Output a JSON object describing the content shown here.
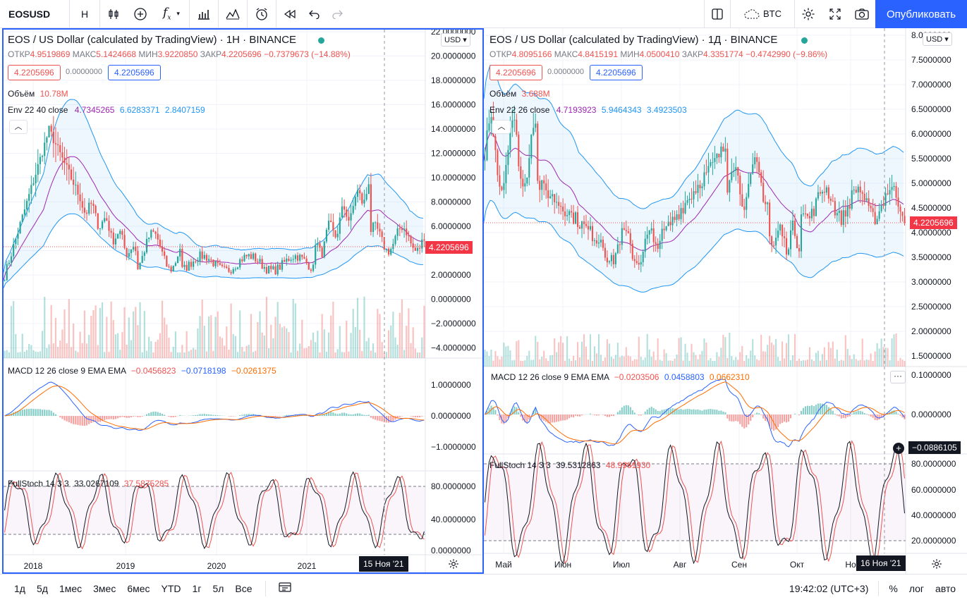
{
  "symbol": "EOSUSD",
  "interval_btn": "H",
  "compare_label": "BTC",
  "publish_label": "Опубликовать",
  "colors": {
    "up": "#26a69a",
    "down": "#ef5350",
    "accent": "#2962ff",
    "env_band": "#2196f3",
    "env_basis": "#9c27b0",
    "macd": "#2962ff",
    "signal": "#ff6d00",
    "stoch_k": "#131722",
    "stoch_d": "#ef5350"
  },
  "left": {
    "title": "EOS / US Dollar (calculated by TradingView) · 1Н · BINANCE",
    "ohlc": {
      "o_label": "ОТКР",
      "o": "4.9519869",
      "h_label": "МАКС",
      "h": "5.1424668",
      "l_label": "МИН",
      "l": "3.9220850",
      "c_label": "ЗАКР",
      "c": "4.2205696",
      "chg": "−0.7379673 (−14.88%)"
    },
    "pill_sell": "4.2205696",
    "pill_mid": "0.0000000",
    "pill_buy": "4.2205696",
    "volume_label": "Объём",
    "volume_value": "10.78M",
    "env_label": "Env 22 40 close",
    "env_basis": "4.7345265",
    "env_upper": "6.6283371",
    "env_lower": "2.8407159",
    "macd_label": "MACD 12 26 close 9 EMA EMA",
    "macd_hist": "−0.0456823",
    "macd_val": "−0.0718198",
    "macd_sig": "−0.0261375",
    "stoch_label": "FullStoch 14 3 3",
    "stoch_k": "33.0267109",
    "stoch_d": "37.5875285",
    "price_axis": [
      "22.0000000",
      "20.0000000",
      "18.0000000",
      "16.0000000",
      "14.0000000",
      "12.0000000",
      "10.0000000",
      "8.0000000",
      "6.0000000",
      "4.0000000",
      "2.0000000",
      "0.0000000",
      "−2.0000000",
      "−4.0000000"
    ],
    "macd_axis": [
      "1.0000000",
      "0.0000000",
      "−1.0000000"
    ],
    "stoch_axis": [
      "80.0000000",
      "40.0000000",
      "0.0000000"
    ],
    "last_price": "4.2205696",
    "currency": "USD",
    "time_axis": [
      "2018",
      "2019",
      "2020",
      "2021"
    ],
    "cursor_date": "15 Ноя '21"
  },
  "right": {
    "title": "EOS / US Dollar (calculated by TradingView) · 1Д · BINANCE",
    "ohlc": {
      "o_label": "ОТКР",
      "o": "4.8095166",
      "h_label": "МАКС",
      "h": "4.8415191",
      "l_label": "МИН",
      "l": "4.0500410",
      "c_label": "ЗАКР",
      "c": "4.3351774",
      "chg": "−0.4742990 (−9.86%)"
    },
    "pill_sell": "4.2205696",
    "pill_mid": "0.0000000",
    "pill_buy": "4.2205696",
    "volume_label": "Объём",
    "volume_value": "3.688M",
    "env_label": "Env 22 26 close",
    "env_basis": "4.7193923",
    "env_upper": "5.9464343",
    "env_lower": "3.4923503",
    "macd_label": "MACD 12 26 close 9 EMA EMA",
    "macd_hist": "−0.0203506",
    "macd_val": "0.0458803",
    "macd_sig": "0.0662310",
    "stoch_label": "FullStoch 14 3 3",
    "stoch_k": "39.5312863",
    "stoch_d": "48.9981930",
    "price_axis": [
      "8.0000000",
      "7.5000000",
      "7.0000000",
      "6.5000000",
      "6.0000000",
      "5.5000000",
      "5.0000000",
      "4.5000000",
      "4.0000000",
      "3.5000000",
      "3.0000000",
      "2.5000000",
      "2.0000000",
      "1.5000000"
    ],
    "macd_axis": [
      "0.1000000",
      "0.0000000"
    ],
    "macd_cursor": "−0.0886105",
    "stoch_axis": [
      "80.0000000",
      "60.0000000",
      "40.0000000",
      "20.0000000"
    ],
    "last_price": "4.2205696",
    "currency": "USD",
    "time_axis": [
      "Май",
      "Июн",
      "Июл",
      "Авг",
      "Сен",
      "Окт",
      "Но"
    ],
    "cursor_date": "16 Ноя '21"
  },
  "bottom": {
    "ranges": [
      "1д",
      "5д",
      "1мес",
      "3мес",
      "6мес",
      "YTD",
      "1г",
      "5л",
      "Все"
    ],
    "clock": "19:42:02 (UTC+3)",
    "pct": "%",
    "log": "лог",
    "auto": "авто"
  }
}
